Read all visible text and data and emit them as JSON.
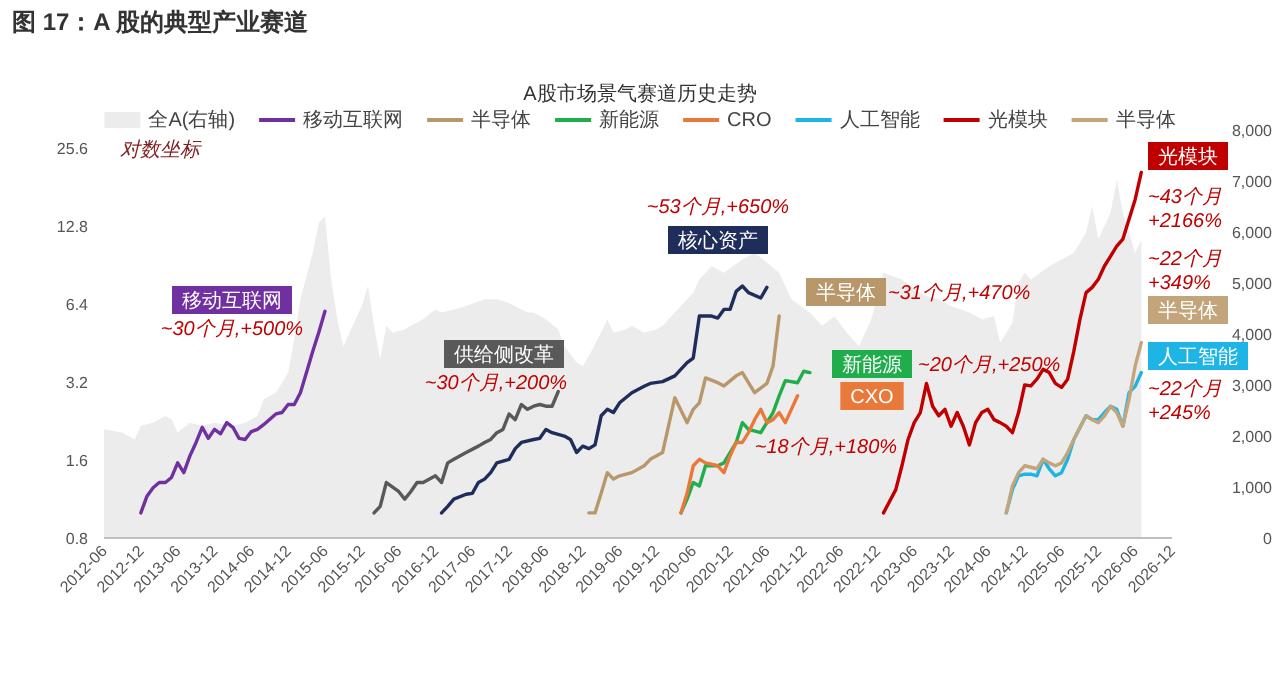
{
  "chart_data": {
    "type": "line",
    "title": "图 17：A 股的典型产业赛道",
    "subtitle": "A股市场景气赛道历史走势",
    "log": "y",
    "legend": "top",
    "xlim": [
      "2012-06",
      "2026-12"
    ],
    "xticks": [
      "2012-06",
      "2012-12",
      "2013-06",
      "2013-12",
      "2014-06",
      "2014-12",
      "2015-06",
      "2015-12",
      "2016-06",
      "2016-12",
      "2017-06",
      "2017-12",
      "2018-06",
      "2018-12",
      "2019-06",
      "2019-12",
      "2020-06",
      "2020-12",
      "2021-06",
      "2021-12",
      "2022-06",
      "2022-12",
      "2023-06",
      "2023-12",
      "2024-06",
      "2024-12",
      "2025-06",
      "2025-12",
      "2026-06",
      "2026-12"
    ],
    "ylim": [
      0.8,
      25.6
    ],
    "yticks": [
      0.8,
      1.6,
      3.2,
      6.4,
      12.8,
      25.6
    ],
    "y2lim": [
      0,
      8000
    ],
    "y2ticks": [
      0,
      {
        "value": 1000,
        "label": "1,000"
      },
      {
        "value": 2000,
        "label": "2,000"
      },
      {
        "value": 3000,
        "label": "3,000"
      },
      {
        "value": 4000,
        "label": "4,000"
      },
      {
        "value": 5000,
        "label": "5,000"
      },
      {
        "value": 6000,
        "label": "6,000"
      },
      {
        "value": 7000,
        "label": "7,000"
      },
      {
        "value": 8000,
        "label": "8,000"
      }
    ],
    "series": [
      {
        "name": "全A(右轴)",
        "type": "area",
        "axis": "y2",
        "color": "#ececec",
        "x": [
          "2012-06",
          "2012-08",
          "2012-09",
          "2012-11",
          "2012-12",
          "2013-02",
          "2013-04",
          "2013-05",
          "2013-06",
          "2013-08",
          "2013-10",
          "2013-12",
          "2014-03",
          "2014-05",
          "2014-07",
          "2014-08",
          "2014-10",
          "2014-12",
          "2015-01",
          "2015-02",
          "2015-04",
          "2015-05",
          "2015-06",
          "2015-07",
          "2015-08",
          "2015-09",
          "2015-11",
          "2015-12",
          "2016-01",
          "2016-02",
          "2016-03",
          "2016-04",
          "2016-05",
          "2016-07",
          "2016-08",
          "2016-10",
          "2016-12",
          "2017-01",
          "2017-03",
          "2017-05",
          "2017-08",
          "2017-10",
          "2017-12",
          "2018-02",
          "2018-03",
          "2018-04",
          "2018-06",
          "2018-08",
          "2018-09",
          "2018-11",
          "2018-12",
          "2019-01",
          "2019-03",
          "2019-04",
          "2019-05",
          "2019-07",
          "2019-08",
          "2019-10",
          "2019-12",
          "2020-01",
          "2020-04",
          "2020-06",
          "2020-07",
          "2020-09",
          "2020-11",
          "2021-02",
          "2021-04",
          "2021-06",
          "2021-08",
          "2021-10",
          "2022-01",
          "2022-03",
          "2022-05",
          "2022-07",
          "2022-09",
          "2022-11",
          "2023-01",
          "2023-04",
          "2023-06",
          "2023-08",
          "2023-10",
          "2023-12",
          "2024-03",
          "2024-05",
          "2024-07",
          "2024-08",
          "2024-10",
          "2024-11",
          "2024-12",
          "2025-01",
          "2025-04",
          "2025-06",
          "2025-08",
          "2025-10",
          "2025-11",
          "2025-12",
          "2026-02",
          "2026-03",
          "2026-04",
          "2026-06",
          "2026-07"
        ],
        "values": [
          2130,
          2090,
          2070,
          1930,
          2200,
          2260,
          2390,
          2330,
          2070,
          2260,
          2200,
          2260,
          2200,
          2260,
          2390,
          2720,
          2850,
          3240,
          3900,
          4680,
          5590,
          6180,
          6310,
          5070,
          4290,
          3760,
          4290,
          4550,
          4940,
          4160,
          3500,
          4160,
          4030,
          4090,
          4160,
          4290,
          4480,
          4420,
          4480,
          4550,
          4680,
          4680,
          4610,
          4480,
          4420,
          4420,
          4290,
          4090,
          3760,
          3440,
          3370,
          3570,
          4030,
          4290,
          4030,
          4090,
          4160,
          4030,
          4090,
          4160,
          4550,
          4810,
          5070,
          5330,
          5200,
          5460,
          5590,
          5400,
          5200,
          4680,
          4420,
          4160,
          4350,
          4030,
          3760,
          4290,
          5200,
          5070,
          4880,
          4740,
          4680,
          4550,
          4420,
          4290,
          4350,
          3830,
          4220,
          5010,
          5200,
          5070,
          5330,
          5460,
          5590,
          5990,
          6510,
          5860,
          6380,
          7030,
          6380,
          5590,
          5860
        ]
      },
      {
        "name": "移动互联网",
        "color": "#7030a0",
        "x": [
          "2012-12",
          "2013-01",
          "2013-02",
          "2013-03",
          "2013-04",
          "2013-05",
          "2013-06",
          "2013-07",
          "2013-08",
          "2013-09",
          "2013-10",
          "2013-11",
          "2013-12",
          "2014-01",
          "2014-02",
          "2014-03",
          "2014-04",
          "2014-05",
          "2014-06",
          "2014-07",
          "2014-08",
          "2014-10",
          "2014-11",
          "2014-12",
          "2015-01",
          "2015-02",
          "2015-03",
          "2015-04",
          "2015-05",
          "2015-06"
        ],
        "values": [
          1.0,
          1.16,
          1.25,
          1.31,
          1.31,
          1.37,
          1.56,
          1.43,
          1.66,
          1.87,
          2.14,
          1.94,
          2.1,
          2.02,
          2.23,
          2.14,
          1.94,
          1.92,
          2.06,
          2.1,
          2.19,
          2.41,
          2.44,
          2.62,
          2.62,
          2.91,
          3.49,
          4.2,
          4.98,
          6.0
        ]
      },
      {
        "color": "#595959",
        "x": [
          "2016-02",
          "2016-03",
          "2016-04",
          "2016-06",
          "2016-07",
          "2016-08",
          "2016-09",
          "2016-10",
          "2016-12",
          "2017-01",
          "2017-02",
          "2017-03",
          "2017-05",
          "2017-07",
          "2017-08",
          "2017-09",
          "2017-10",
          "2017-11",
          "2017-12",
          "2018-01",
          "2018-02",
          "2018-03",
          "2018-04",
          "2018-05",
          "2018-06",
          "2018-07",
          "2018-08"
        ],
        "values": [
          1.0,
          1.06,
          1.31,
          1.21,
          1.13,
          1.21,
          1.31,
          1.31,
          1.39,
          1.31,
          1.56,
          1.61,
          1.71,
          1.81,
          1.87,
          1.92,
          2.04,
          2.1,
          2.41,
          2.29,
          2.62,
          2.51,
          2.58,
          2.62,
          2.58,
          2.58,
          2.94
        ]
      },
      {
        "color": "#1f2d5a",
        "x": [
          "2017-01",
          "2017-02",
          "2017-03",
          "2017-05",
          "2017-06",
          "2017-07",
          "2017-08",
          "2017-09",
          "2017-10",
          "2017-12",
          "2018-01",
          "2018-02",
          "2018-04",
          "2018-05",
          "2018-06",
          "2018-07",
          "2018-09",
          "2018-10",
          "2018-11",
          "2018-12",
          "2019-01",
          "2019-02",
          "2019-03",
          "2019-04",
          "2019-05",
          "2019-06",
          "2019-08",
          "2019-10",
          "2019-11",
          "2020-01",
          "2020-03",
          "2020-05",
          "2020-06",
          "2020-07",
          "2020-09",
          "2020-10",
          "2020-11",
          "2020-12",
          "2021-01",
          "2021-02",
          "2021-03",
          "2021-05",
          "2021-06"
        ],
        "values": [
          1.0,
          1.06,
          1.13,
          1.18,
          1.19,
          1.31,
          1.35,
          1.43,
          1.56,
          1.61,
          1.77,
          1.87,
          1.92,
          1.94,
          2.1,
          2.04,
          1.98,
          1.92,
          1.71,
          1.81,
          1.77,
          1.83,
          2.37,
          2.51,
          2.44,
          2.66,
          2.91,
          3.08,
          3.16,
          3.21,
          3.38,
          3.8,
          3.96,
          5.75,
          5.75,
          5.65,
          6.1,
          6.1,
          7.16,
          7.51,
          7.08,
          6.75,
          7.42
        ]
      },
      {
        "name": "半导体",
        "color": "#b8976b",
        "x": [
          "2019-01",
          "2019-02",
          "2019-03",
          "2019-04",
          "2019-05",
          "2019-06",
          "2019-08",
          "2019-10",
          "2019-11",
          "2020-01",
          "2020-03",
          "2020-05",
          "2020-06",
          "2020-07",
          "2020-08",
          "2020-10",
          "2020-11",
          "2021-01",
          "2021-02",
          "2021-04",
          "2021-06",
          "2021-07",
          "2021-08"
        ],
        "values": [
          1.0,
          1.0,
          1.19,
          1.43,
          1.35,
          1.39,
          1.43,
          1.52,
          1.61,
          1.71,
          2.78,
          2.23,
          2.51,
          2.66,
          3.32,
          3.18,
          3.09,
          3.38,
          3.48,
          2.91,
          3.16,
          3.69,
          5.75
        ]
      },
      {
        "name": "新能源",
        "color": "#1fae4b",
        "x": [
          "2020-04",
          "2020-05",
          "2020-06",
          "2020-07",
          "2020-08",
          "2020-10",
          "2020-11",
          "2020-12",
          "2021-01",
          "2021-02",
          "2021-03",
          "2021-05",
          "2021-07",
          "2021-08",
          "2021-09",
          "2021-11",
          "2021-12",
          "2022-01"
        ],
        "values": [
          1.0,
          1.13,
          1.31,
          1.27,
          1.52,
          1.52,
          1.56,
          1.71,
          1.87,
          2.23,
          2.1,
          2.04,
          2.44,
          2.83,
          3.24,
          3.18,
          3.52,
          3.48
        ]
      },
      {
        "name": "CRO",
        "color": "#e8793a",
        "x": [
          "2020-04",
          "2020-05",
          "2020-06",
          "2020-07",
          "2020-08",
          "2020-10",
          "2020-11",
          "2020-12",
          "2021-01",
          "2021-02",
          "2021-03",
          "2021-04",
          "2021-05",
          "2021-06",
          "2021-07",
          "2021-08",
          "2021-09",
          "2021-11"
        ],
        "values": [
          1.0,
          1.19,
          1.52,
          1.61,
          1.56,
          1.52,
          1.43,
          1.66,
          1.87,
          1.87,
          2.04,
          2.29,
          2.51,
          2.23,
          2.29,
          2.44,
          2.23,
          2.83
        ]
      },
      {
        "name": "人工智能",
        "color": "#1eb4e6",
        "x": [
          "2024-09",
          "2024-10",
          "2024-11",
          "2024-12",
          "2025-01",
          "2025-02",
          "2025-03",
          "2025-04",
          "2025-05",
          "2025-06",
          "2025-07",
          "2025-08",
          "2025-10",
          "2025-11",
          "2025-12",
          "2026-01",
          "2026-02",
          "2026-03",
          "2026-04",
          "2026-05",
          "2026-06",
          "2026-07"
        ],
        "values": [
          1.0,
          1.23,
          1.39,
          1.41,
          1.41,
          1.39,
          1.61,
          1.48,
          1.39,
          1.43,
          1.61,
          1.92,
          2.37,
          2.29,
          2.29,
          2.44,
          2.58,
          2.51,
          2.16,
          2.91,
          3.08,
          3.48
        ]
      },
      {
        "name": "光模块",
        "color": "#c00000",
        "x": [
          "2023-01",
          "2023-03",
          "2023-04",
          "2023-05",
          "2023-06",
          "2023-07",
          "2023-08",
          "2023-09",
          "2023-10",
          "2023-11",
          "2023-12",
          "2024-01",
          "2024-02",
          "2024-03",
          "2024-04",
          "2024-05",
          "2024-06",
          "2024-07",
          "2024-08",
          "2024-09",
          "2024-10",
          "2024-11",
          "2024-12",
          "2025-01",
          "2025-02",
          "2025-03",
          "2025-04",
          "2025-05",
          "2025-06",
          "2025-07",
          "2025-08",
          "2025-09",
          "2025-10",
          "2025-11",
          "2025-12",
          "2026-01",
          "2026-02",
          "2026-03",
          "2026-04",
          "2026-05",
          "2026-06",
          "2026-07"
        ],
        "values": [
          1.0,
          1.23,
          1.52,
          1.92,
          2.23,
          2.44,
          3.16,
          2.58,
          2.37,
          2.51,
          2.16,
          2.44,
          2.16,
          1.83,
          2.23,
          2.44,
          2.51,
          2.29,
          2.23,
          2.16,
          2.04,
          2.44,
          3.12,
          3.09,
          3.28,
          3.58,
          3.48,
          3.16,
          3.05,
          3.28,
          4.2,
          5.58,
          7.08,
          7.42,
          7.97,
          8.97,
          9.8,
          10.7,
          11.4,
          13.6,
          16.2,
          20.6
        ]
      },
      {
        "name": "半导体",
        "color": "#c2a57a",
        "x": [
          "2024-09",
          "2024-10",
          "2024-11",
          "2024-12",
          "2025-01",
          "2025-02",
          "2025-03",
          "2025-04",
          "2025-05",
          "2025-06",
          "2025-07",
          "2025-08",
          "2025-10",
          "2025-11",
          "2025-12",
          "2026-01",
          "2026-02",
          "2026-03",
          "2026-04",
          "2026-05",
          "2026-06",
          "2026-07"
        ],
        "values": [
          1.0,
          1.27,
          1.43,
          1.52,
          1.5,
          1.48,
          1.61,
          1.56,
          1.52,
          1.56,
          1.71,
          1.92,
          2.37,
          2.29,
          2.23,
          2.37,
          2.58,
          2.44,
          2.16,
          2.74,
          3.69,
          4.54
        ]
      }
    ],
    "annotations": [
      "移动互联网",
      "供给侧改革",
      "核心资产",
      "半导体",
      "新能源",
      "CXO",
      "人工智能",
      "光模块",
      "半导体",
      "~30个月,+500%",
      "~30个月,+200%",
      "~53个月,+650%",
      "~31个月,+470%",
      "~20个月,+250%",
      "~18个月,+180%",
      "~22个月 +245%",
      "~43个月 +2166%",
      "~22个月 +349%",
      "对数坐标"
    ]
  }
}
